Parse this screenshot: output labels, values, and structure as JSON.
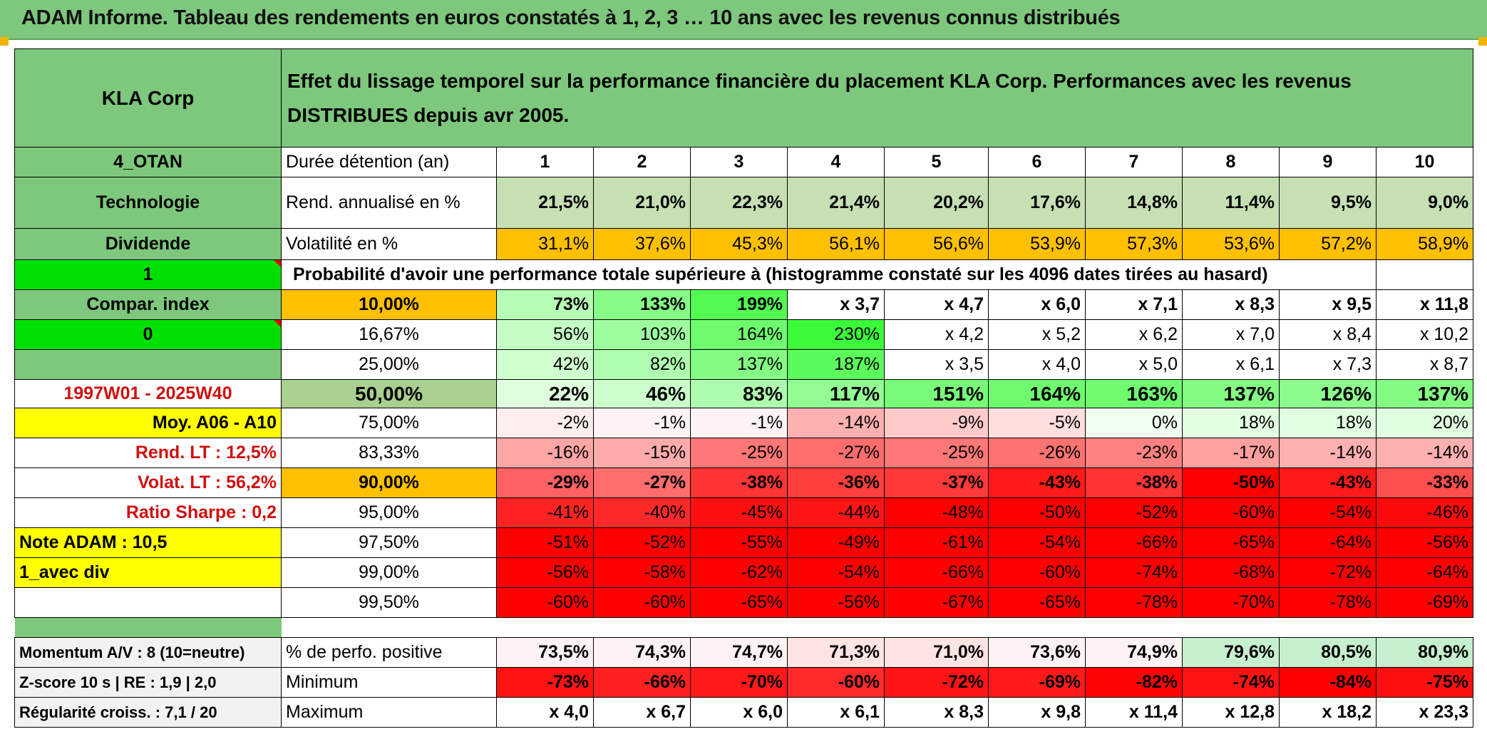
{
  "title": "ADAM Informe. Tableau des rendements en euros constatés à 1, 2, 3 … 10 ans avec les revenus connus distribués",
  "header": {
    "company": "KLA Corp",
    "description": "Effet du lissage temporel sur la performance financière du placement KLA Corp. Performances avec les revenus DISTRIBUES depuis avr 2005."
  },
  "durations_label": "Durée détention (an)",
  "years": [
    "1",
    "2",
    "3",
    "4",
    "5",
    "6",
    "7",
    "8",
    "9",
    "10"
  ],
  "info": {
    "code": "4_OTAN",
    "sector": "Technologie",
    "dividend": "Dividende",
    "flag_value": "1",
    "compar_index": "Compar. index",
    "index_value": "0",
    "period": "1997W01 - 2025W40",
    "moy": "Moy. A06 - A10",
    "rend_lt": "Rend. LT :    12,5%",
    "volat_lt": "Volat. LT :    56,2%",
    "sharpe": "Ratio Sharpe :    0,2",
    "note": "Note ADAM : 10,5",
    "avec_div": "1_avec div"
  },
  "rend": {
    "label": "Rend. annualisé en %",
    "values": [
      "21,5%",
      "21,0%",
      "22,3%",
      "21,4%",
      "20,2%",
      "17,6%",
      "14,8%",
      "11,4%",
      "9,5%",
      "9,0%"
    ]
  },
  "volat": {
    "label": "Volatilité en %",
    "values": [
      "31,1%",
      "37,6%",
      "45,3%",
      "56,1%",
      "56,6%",
      "53,9%",
      "57,3%",
      "53,6%",
      "57,2%",
      "58,9%"
    ]
  },
  "probability_title": "Probabilité d'avoir une performance totale supérieure à (histogramme constaté sur les 4096 dates tirées au hasard)",
  "quantiles": [
    {
      "label": "10,00%",
      "values": [
        "73%",
        "133%",
        "199%",
        "x 3,7",
        "x 4,7",
        "x 6,0",
        "x 7,1",
        "x 8,3",
        "x 9,5",
        "x 11,8"
      ]
    },
    {
      "label": "16,67%",
      "values": [
        "56%",
        "103%",
        "164%",
        "230%",
        "x 4,2",
        "x 5,2",
        "x 6,2",
        "x 7,0",
        "x 8,4",
        "x 10,2"
      ]
    },
    {
      "label": "25,00%",
      "values": [
        "42%",
        "82%",
        "137%",
        "187%",
        "x 3,5",
        "x 4,0",
        "x 5,0",
        "x 6,1",
        "x 7,3",
        "x 8,7"
      ]
    },
    {
      "label": "50,00%",
      "values": [
        "22%",
        "46%",
        "83%",
        "117%",
        "151%",
        "164%",
        "163%",
        "137%",
        "126%",
        "137%"
      ]
    },
    {
      "label": "75,00%",
      "values": [
        "-2%",
        "-1%",
        "-1%",
        "-14%",
        "-9%",
        "-5%",
        "0%",
        "18%",
        "18%",
        "20%"
      ]
    },
    {
      "label": "83,33%",
      "values": [
        "-16%",
        "-15%",
        "-25%",
        "-27%",
        "-25%",
        "-26%",
        "-23%",
        "-17%",
        "-14%",
        "-14%"
      ]
    },
    {
      "label": "90,00%",
      "values": [
        "-29%",
        "-27%",
        "-38%",
        "-36%",
        "-37%",
        "-43%",
        "-38%",
        "-50%",
        "-43%",
        "-33%"
      ]
    },
    {
      "label": "95,00%",
      "values": [
        "-41%",
        "-40%",
        "-45%",
        "-44%",
        "-48%",
        "-50%",
        "-52%",
        "-60%",
        "-54%",
        "-46%"
      ]
    },
    {
      "label": "97,50%",
      "values": [
        "-51%",
        "-52%",
        "-55%",
        "-49%",
        "-61%",
        "-54%",
        "-66%",
        "-65%",
        "-64%",
        "-56%"
      ]
    },
    {
      "label": "99,00%",
      "values": [
        "-56%",
        "-58%",
        "-62%",
        "-54%",
        "-66%",
        "-60%",
        "-74%",
        "-68%",
        "-72%",
        "-64%"
      ]
    },
    {
      "label": "99,50%",
      "values": [
        "-60%",
        "-60%",
        "-65%",
        "-56%",
        "-67%",
        "-65%",
        "-78%",
        "-70%",
        "-78%",
        "-69%"
      ]
    }
  ],
  "bottom": [
    {
      "left": "Momentum A/V : 8 (10=neutre)",
      "label": "% de perfo. positive",
      "values": [
        "73,5%",
        "74,3%",
        "74,7%",
        "71,3%",
        "71,0%",
        "73,6%",
        "74,9%",
        "79,6%",
        "80,5%",
        "80,9%"
      ]
    },
    {
      "left": "Z-score 10 s | RE : 1,9 | 2,0",
      "label": "Minimum",
      "values": [
        "-73%",
        "-66%",
        "-70%",
        "-60%",
        "-72%",
        "-69%",
        "-82%",
        "-74%",
        "-84%",
        "-75%"
      ]
    },
    {
      "left": "Régularité croiss. : 7,1 / 20",
      "label": "Maximum",
      "values": [
        "x 4,0",
        "x 6,7",
        "x 6,0",
        "x 6,1",
        "x 8,3",
        "x 9,8",
        "x 11,4",
        "x 12,8",
        "x 18,2",
        "x 23,3"
      ]
    }
  ],
  "colors": {
    "header_green": "#7dc87c",
    "rend_green": "#c6e0b4",
    "volat_orange": "#ffc000",
    "highlight_yellow": "#ffff00",
    "flag_green": "#00e000",
    "label_red": "#d01010"
  }
}
